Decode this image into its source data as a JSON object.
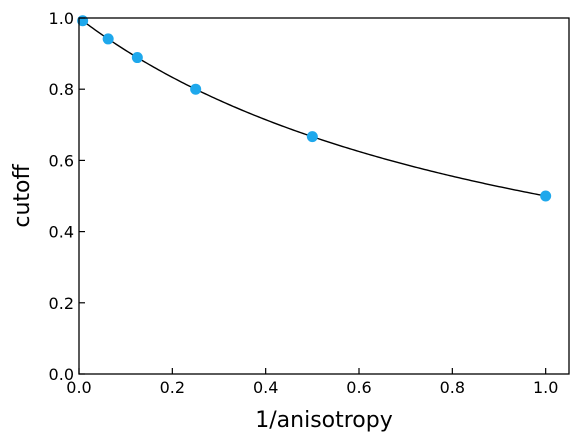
{
  "chart_data": {
    "type": "scatter",
    "title": "",
    "xlabel": "1/anisotropy",
    "ylabel": "cutoff",
    "xlim": [
      0.0,
      1.05
    ],
    "ylim": [
      0.0,
      1.0
    ],
    "xticks": [
      0.0,
      0.2,
      0.4,
      0.6,
      0.8,
      1.0
    ],
    "yticks": [
      0.0,
      0.2,
      0.4,
      0.6,
      0.8,
      1.0
    ],
    "tick_labels_x": [
      "0.0",
      "0.2",
      "0.4",
      "0.6",
      "0.8",
      "1.0"
    ],
    "tick_labels_y": [
      "0.0",
      "0.2",
      "0.4",
      "0.6",
      "0.8",
      "1.0"
    ],
    "grid": false,
    "legend": "none",
    "series": [
      {
        "kind": "points",
        "color": "#1ea8ec",
        "x": [
          0.0078125,
          0.0625,
          0.125,
          0.25,
          0.5,
          1.0
        ],
        "y": [
          0.9922,
          0.9412,
          0.8889,
          0.8,
          0.6667,
          0.5
        ]
      },
      {
        "kind": "fit-curve",
        "color": "#000000",
        "function": "y = 1/(1+x)",
        "x_range": [
          0.0,
          1.0
        ]
      }
    ]
  }
}
